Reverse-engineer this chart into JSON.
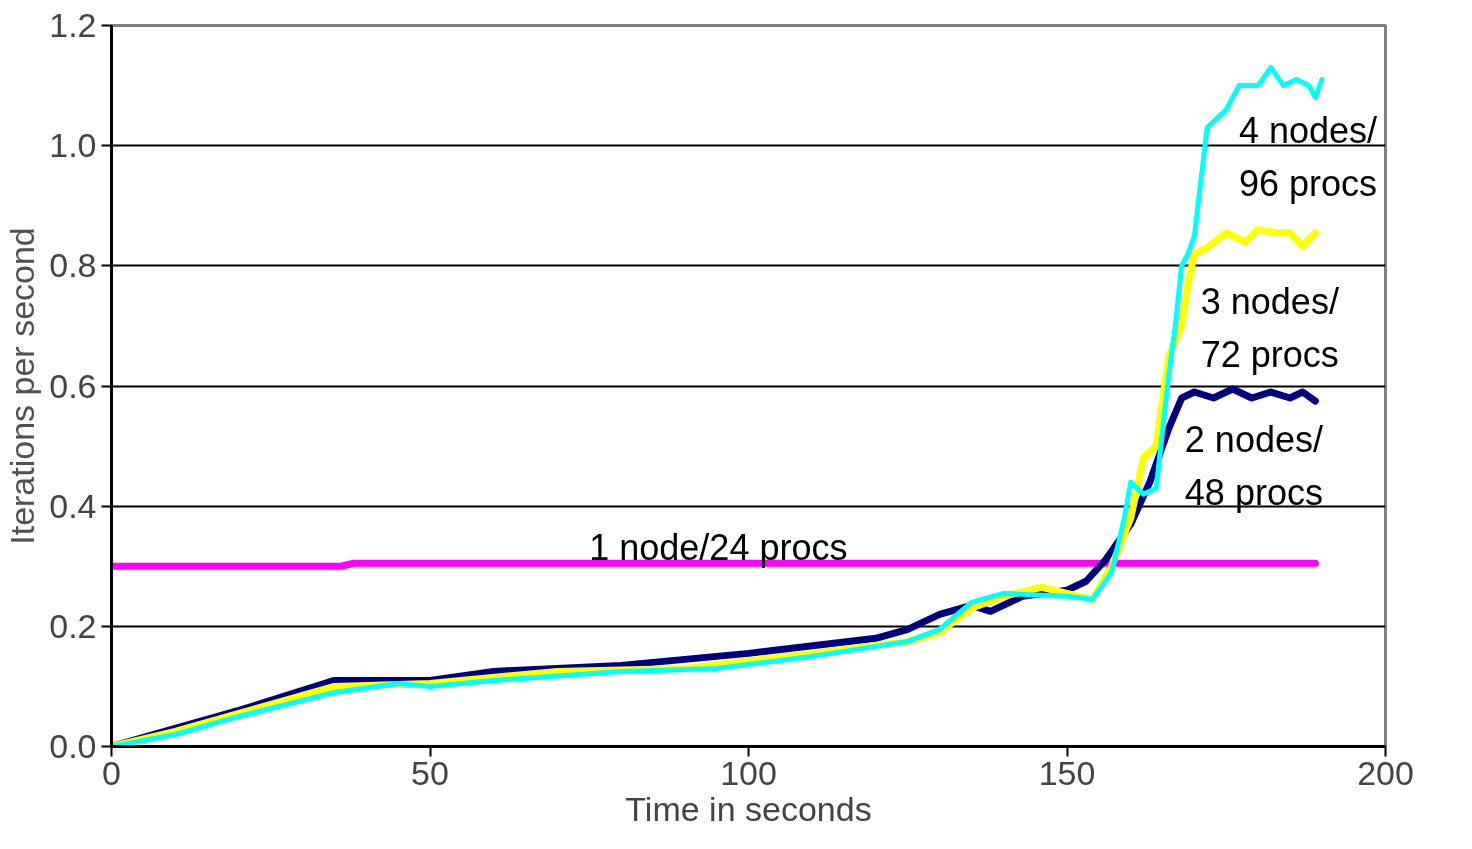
{
  "chart_data": {
    "type": "line",
    "xlabel": "Time in seconds",
    "ylabel": "Iterations per second",
    "xlim": [
      0,
      200
    ],
    "xticks": [
      0,
      50,
      100,
      150,
      200
    ],
    "ylim": [
      0,
      1.2
    ],
    "yticks": [
      {
        "value": 0,
        "label": "0.0"
      },
      0.2,
      0.4,
      0.6,
      0.8,
      {
        "value": 1,
        "label": "1.0"
      },
      1.2
    ],
    "grid": "y",
    "marker": "none",
    "line_style": "solid",
    "series": [
      {
        "name": "1 node/24 procs",
        "color": "#ff00ff",
        "x": [
          0,
          36,
          38,
          189
        ],
        "values": [
          0.3,
          0.3,
          0.305,
          0.305
        ]
      },
      {
        "name": "2 nodes/\n48 procs",
        "color": "#000080",
        "x": [
          0,
          10,
          20,
          35,
          50,
          60,
          80,
          100,
          120,
          125,
          130,
          135,
          138,
          143,
          150,
          153,
          156,
          160,
          163,
          166,
          168,
          170,
          173,
          176,
          179,
          182,
          185,
          187,
          189
        ],
        "values": [
          0,
          0.03,
          0.06,
          0.11,
          0.11,
          0.125,
          0.135,
          0.155,
          0.18,
          0.195,
          0.22,
          0.235,
          0.225,
          0.25,
          0.26,
          0.275,
          0.31,
          0.37,
          0.44,
          0.53,
          0.58,
          0.59,
          0.58,
          0.595,
          0.58,
          0.59,
          0.58,
          0.59,
          0.575
        ]
      },
      {
        "name": "3 nodes/\n72 procs",
        "color": "#ffff00",
        "x": [
          0,
          10,
          20,
          35,
          50,
          70,
          90,
          110,
          125,
          130,
          135,
          140,
          146,
          150,
          154,
          157,
          160,
          162,
          164,
          166,
          168,
          169,
          170,
          172,
          175,
          178,
          180,
          183,
          185,
          187,
          189
        ],
        "values": [
          0,
          0.025,
          0.055,
          0.1,
          0.105,
          0.125,
          0.13,
          0.155,
          0.175,
          0.19,
          0.23,
          0.25,
          0.265,
          0.255,
          0.245,
          0.3,
          0.38,
          0.48,
          0.5,
          0.65,
          0.7,
          0.77,
          0.82,
          0.83,
          0.855,
          0.84,
          0.86,
          0.855,
          0.855,
          0.833,
          0.855
        ]
      },
      {
        "name": "4 nodes/\n96 procs",
        "color": "#00ffff",
        "x": [
          0,
          10,
          20,
          35,
          45,
          50,
          60,
          80,
          95,
          110,
          125,
          130,
          135,
          140,
          150,
          154,
          157,
          159,
          160,
          162,
          164,
          166,
          167,
          168,
          169,
          170,
          172,
          175,
          177,
          180,
          182,
          184,
          186,
          188,
          189,
          190
        ],
        "values": [
          0,
          0.02,
          0.05,
          0.09,
          0.105,
          0.1,
          0.11,
          0.125,
          0.13,
          0.15,
          0.175,
          0.195,
          0.24,
          0.255,
          0.25,
          0.245,
          0.29,
          0.38,
          0.44,
          0.42,
          0.43,
          0.62,
          0.7,
          0.8,
          0.82,
          0.85,
          1.03,
          1.06,
          1.1,
          1.1,
          1.13,
          1.1,
          1.11,
          1.1,
          1.08,
          1.11
        ]
      }
    ]
  }
}
